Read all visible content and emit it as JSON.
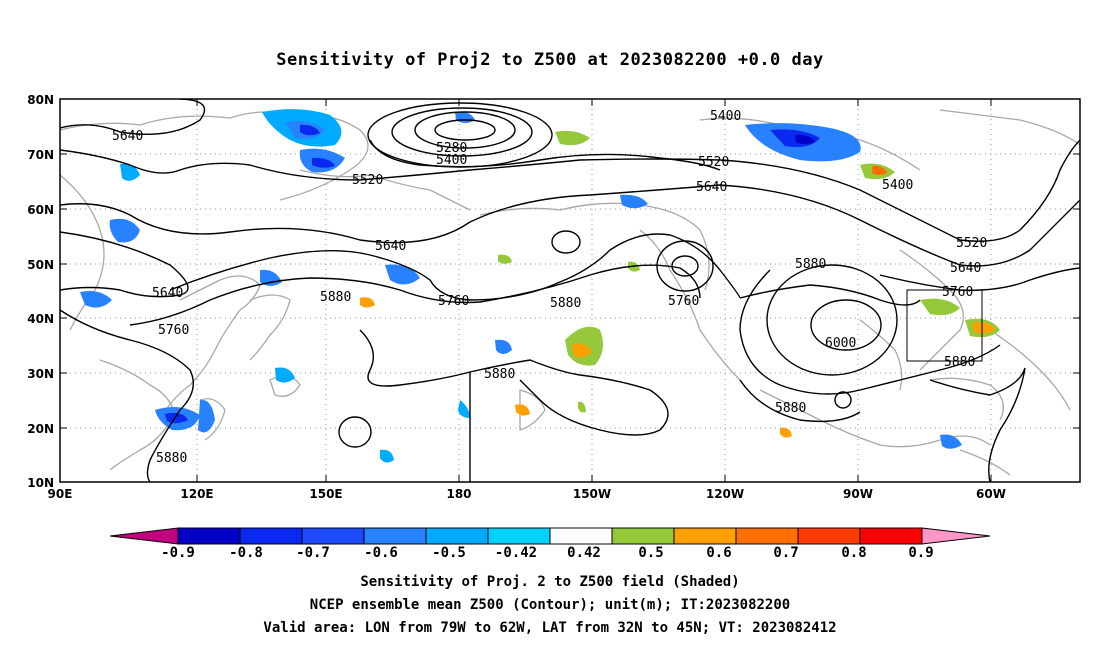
{
  "title": "Sensitivity of Proj2 to Z500 at 2023082200 +0.0 day",
  "lat_labels": [
    "80N",
    "70N",
    "60N",
    "50N",
    "40N",
    "30N",
    "20N",
    "10N"
  ],
  "lon_labels": [
    "90E",
    "120E",
    "150E",
    "180",
    "150W",
    "120W",
    "90W",
    "60W"
  ],
  "contour_labels": [
    "5640",
    "5280",
    "5400",
    "5520",
    "5640",
    "5640",
    "5760",
    "5880",
    "5880",
    "5760",
    "5400",
    "5520",
    "5640",
    "5400",
    "5520",
    "5640",
    "5760",
    "5880",
    "6000",
    "5880",
    "5880",
    "5880",
    "5760",
    "5880"
  ],
  "colorbar": {
    "labels": [
      "-0.9",
      "-0.8",
      "-0.7",
      "-0.6",
      "-0.5",
      "-0.42",
      "0.42",
      "0.5",
      "0.6",
      "0.7",
      "0.8",
      "0.9"
    ],
    "colors": [
      "#c0007f",
      "#0000c8",
      "#0a28f0",
      "#1e4bff",
      "#2882ff",
      "#00aaff",
      "#00d2ff",
      "#ffffff",
      "#96c83c",
      "#ffa000",
      "#ff6e00",
      "#ff3c00",
      "#ff0000",
      "#ff96c8"
    ]
  },
  "footer": {
    "line1": "Sensitivity of Proj. 2 to Z500 field (Shaded)",
    "line2": "NCEP ensemble mean Z500 (Contour); unit(m); IT:2023082200",
    "line3": "Valid area: LON from 79W to 62W, LAT from 32N to 45N; VT: 2023082412"
  }
}
